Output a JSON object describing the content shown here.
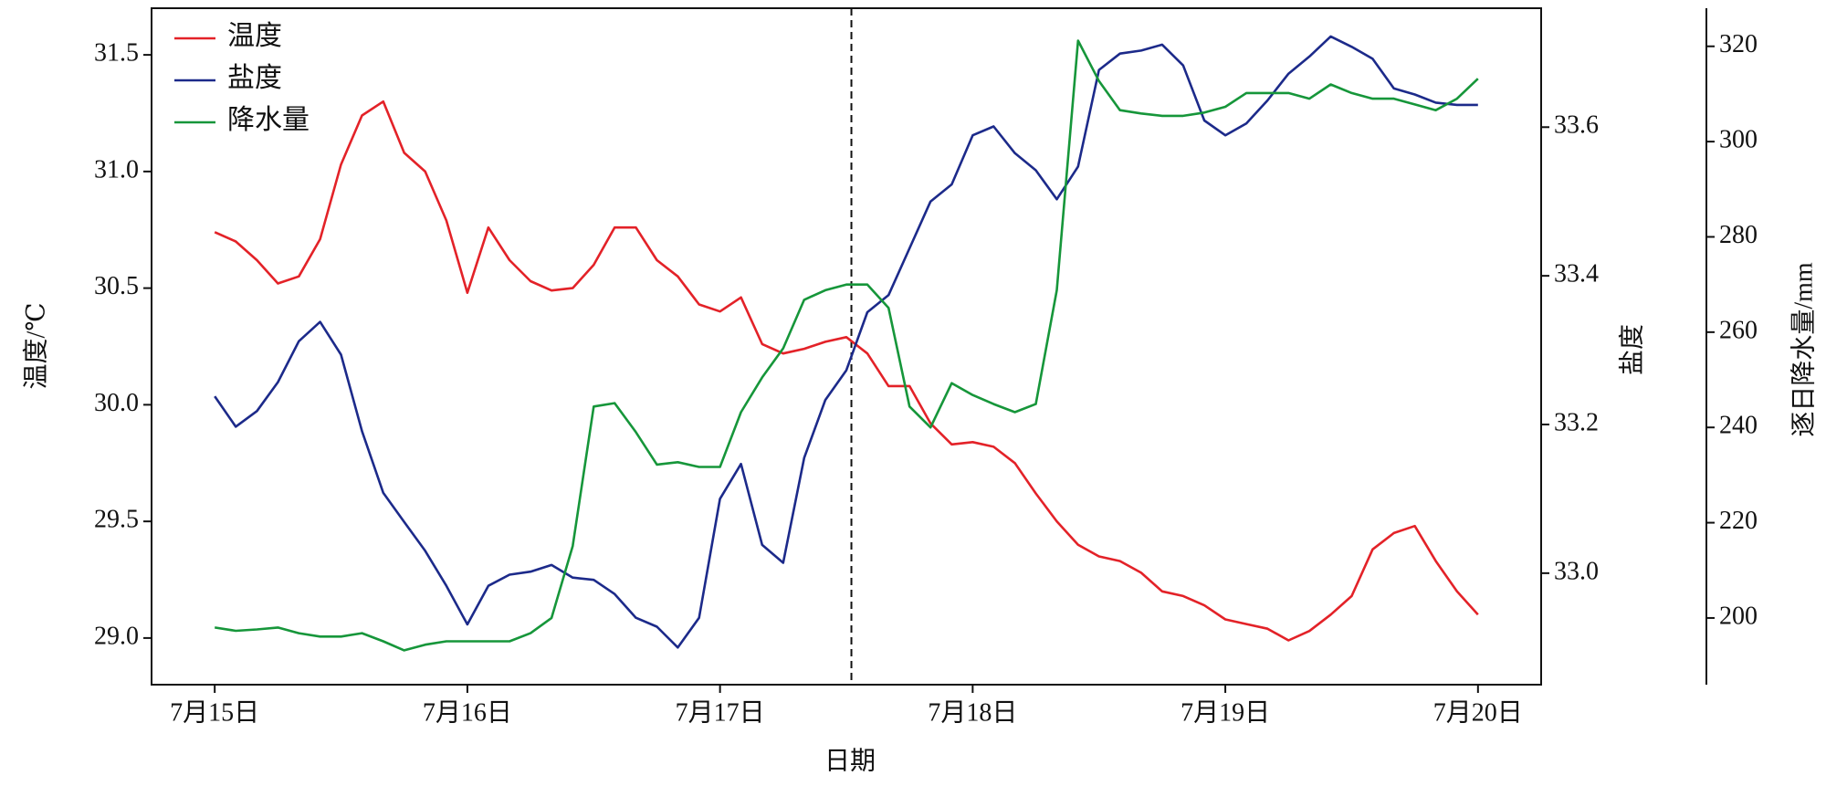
{
  "chart_data": {
    "type": "line",
    "x_label": "日期",
    "y_label": "温度/℃",
    "y2_label": "盐度",
    "y3_label": "逐日降水量/mm",
    "x": [
      0,
      0.083,
      0.167,
      0.25,
      0.333,
      0.417,
      0.5,
      0.583,
      0.667,
      0.75,
      0.833,
      0.917,
      1,
      1.083,
      1.167,
      1.25,
      1.333,
      1.417,
      1.5,
      1.583,
      1.667,
      1.75,
      1.833,
      1.917,
      2,
      2.083,
      2.167,
      2.25,
      2.333,
      2.417,
      2.5,
      2.583,
      2.667,
      2.75,
      2.833,
      2.917,
      3,
      3.083,
      3.167,
      3.25,
      3.333,
      3.417,
      3.5,
      3.583,
      3.667,
      3.75,
      3.833,
      3.917,
      4,
      4.083,
      4.167,
      4.25,
      4.333,
      4.417,
      4.5,
      4.583,
      4.667,
      4.75,
      4.833,
      4.917,
      5
    ],
    "xlim": [
      -0.25,
      5.25
    ],
    "xticks": [
      {
        "value": 0,
        "label": "7月15日"
      },
      {
        "value": 1,
        "label": "7月16日"
      },
      {
        "value": 2,
        "label": "7月17日"
      },
      {
        "value": 3,
        "label": "7月18日"
      },
      {
        "value": 4,
        "label": "7月19日"
      },
      {
        "value": 5,
        "label": "7月20日"
      }
    ],
    "ylim": [
      28.8,
      31.7
    ],
    "yticks": [
      {
        "value": 29,
        "label": "29.0"
      },
      29.5,
      {
        "value": 30,
        "label": "30.0"
      },
      30.5,
      {
        "value": 31,
        "label": "31.0"
      },
      31.5
    ],
    "y2lim": [
      32.85,
      33.76
    ],
    "y2ticks": [
      {
        "value": 33,
        "label": "33.0"
      },
      33.2,
      33.4,
      33.6
    ],
    "y3lim": [
      186,
      328
    ],
    "y3ticks": [
      200,
      220,
      240,
      260,
      280,
      300,
      320
    ],
    "vline": 2.52,
    "legend": "upper left",
    "series": [
      {
        "name": "温度",
        "color": "#e32228",
        "axis": "y",
        "values": [
          30.74,
          30.7,
          30.62,
          30.52,
          30.55,
          30.71,
          31.03,
          31.24,
          31.3,
          31.08,
          31.0,
          30.79,
          30.48,
          30.76,
          30.62,
          30.53,
          30.49,
          30.5,
          30.6,
          30.76,
          30.76,
          30.62,
          30.55,
          30.43,
          30.4,
          30.46,
          30.26,
          30.22,
          30.24,
          30.27,
          30.29,
          30.22,
          30.08,
          30.08,
          29.92,
          29.83,
          29.84,
          29.82,
          29.75,
          29.62,
          29.5,
          29.4,
          29.35,
          29.33,
          29.28,
          29.2,
          29.18,
          29.14,
          29.08,
          29.06,
          29.04,
          28.99,
          29.03,
          29.1,
          29.18,
          29.38,
          29.45,
          29.48,
          29.33,
          29.2,
          29.1
        ]
      },
      {
        "name": "盐度",
        "color": "#1c2a8a",
        "axis": "y2",
        "values": [
          33.238,
          33.197,
          33.218,
          33.257,
          33.312,
          33.338,
          33.294,
          33.191,
          33.108,
          33.069,
          33.03,
          32.983,
          32.931,
          32.983,
          32.998,
          33.002,
          33.011,
          32.994,
          32.991,
          32.972,
          32.94,
          32.928,
          32.9,
          32.94,
          33.1,
          33.147,
          33.038,
          33.014,
          33.155,
          33.233,
          33.273,
          33.351,
          33.374,
          33.437,
          33.5,
          33.523,
          33.589,
          33.601,
          33.565,
          33.542,
          33.503,
          33.547,
          33.677,
          33.699,
          33.703,
          33.711,
          33.683,
          33.609,
          33.589,
          33.605,
          33.636,
          33.672,
          33.695,
          33.722,
          33.708,
          33.692,
          33.652,
          33.644,
          33.633,
          33.63,
          33.63
        ]
      },
      {
        "name": "降水量",
        "color": "#16963a",
        "axis": "y3",
        "values": [
          198.0,
          197.3,
          197.6,
          198.0,
          196.8,
          196.1,
          196.1,
          196.8,
          195.1,
          193.2,
          194.4,
          195.1,
          195.1,
          195.1,
          195.1,
          196.8,
          200.0,
          215.1,
          244.4,
          245.1,
          239.0,
          232.2,
          232.7,
          231.7,
          231.7,
          243.2,
          250.5,
          256.6,
          266.8,
          268.8,
          270.0,
          270.0,
          265.1,
          244.4,
          240.0,
          249.3,
          246.8,
          244.9,
          243.2,
          244.9,
          268.8,
          321.2,
          312.7,
          306.6,
          305.9,
          305.4,
          305.4,
          306.1,
          307.3,
          310.2,
          310.2,
          310.2,
          309.0,
          312.0,
          310.2,
          309.0,
          309.0,
          307.8,
          306.6,
          309.0,
          313.2
        ]
      }
    ]
  }
}
